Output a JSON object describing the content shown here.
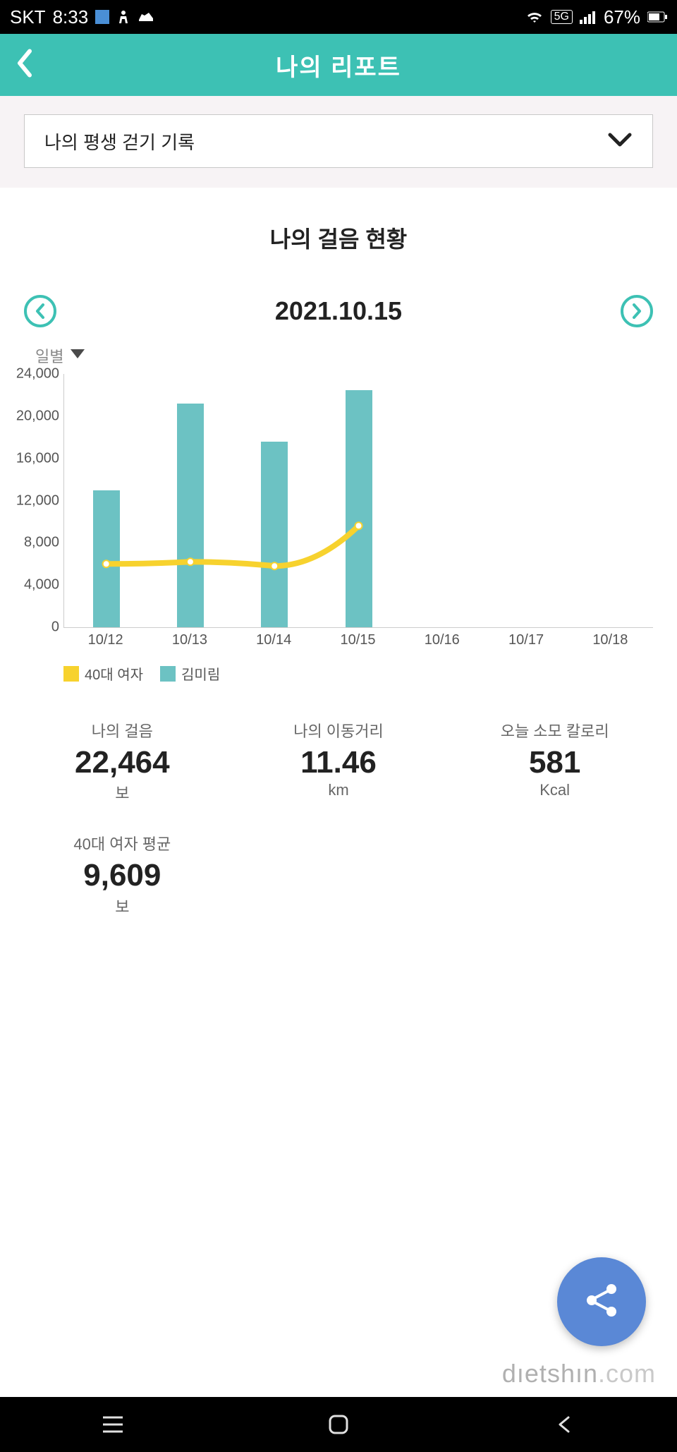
{
  "status_bar": {
    "carrier": "SKT",
    "time": "8:33",
    "network": "5G",
    "battery": "67%"
  },
  "header": {
    "title": "나의 리포트"
  },
  "dropdown": {
    "label": "나의 평생 걷기 기록"
  },
  "section": {
    "title": "나의 걸음 현황",
    "date": "2021.10.15",
    "period_label": "일별"
  },
  "chart": {
    "type": "bar+line",
    "y_ticks": [
      0,
      4000,
      8000,
      12000,
      16000,
      20000,
      24000
    ],
    "y_tick_labels": [
      "0",
      "4,000",
      "8,000",
      "12,000",
      "16,000",
      "20,000",
      "24,000"
    ],
    "ymax": 24000,
    "x_labels": [
      "10/12",
      "10/13",
      "10/14",
      "10/15",
      "10/16",
      "10/17",
      "10/18"
    ],
    "bar_values": [
      13000,
      21200,
      17600,
      22464,
      0,
      0,
      0
    ],
    "line_values": [
      6000,
      6200,
      5800,
      9609,
      null,
      null,
      null
    ],
    "bar_color": "#6cc2c3",
    "line_color": "#f7d22e",
    "line_marker_color": "#ffffff",
    "grid_color": "#cccccc",
    "legend": [
      {
        "label": "40대 여자",
        "color": "#f7d22e"
      },
      {
        "label": "김미림",
        "color": "#6cc2c3"
      }
    ]
  },
  "stats": [
    {
      "label": "나의 걸음",
      "value": "22,464",
      "unit": "보"
    },
    {
      "label": "나의 이동거리",
      "value": "11.46",
      "unit": "km"
    },
    {
      "label": "오늘 소모 칼로리",
      "value": "581",
      "unit": "Kcal"
    },
    {
      "label": "40대 여자 평균",
      "value": "9,609",
      "unit": "보"
    }
  ],
  "watermark": {
    "main": "dıetshın",
    "suffix": ".com"
  },
  "colors": {
    "accent": "#3dc1b4",
    "fab": "#5a88d6",
    "bg_section": "#f7f3f5"
  }
}
